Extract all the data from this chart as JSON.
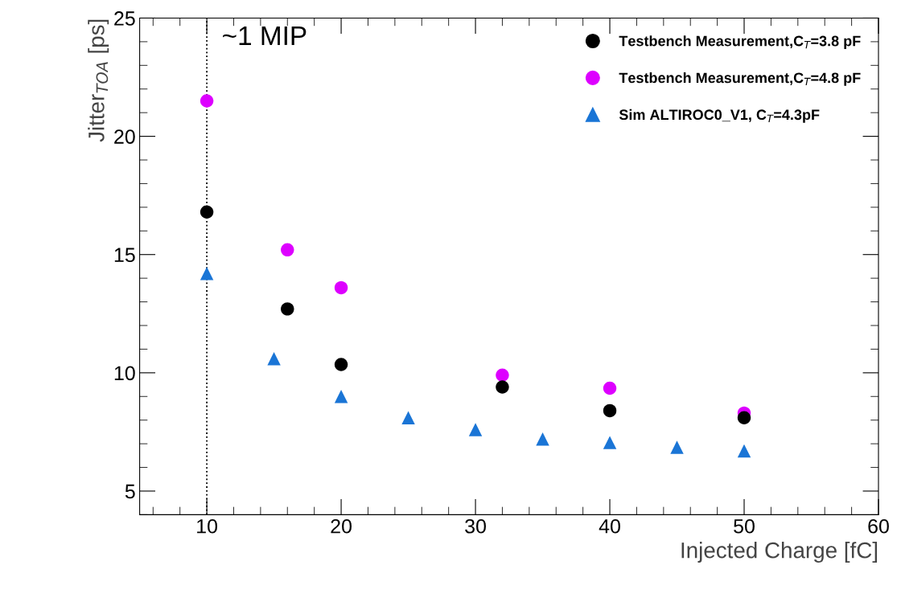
{
  "chart_data": {
    "type": "scatter",
    "xlabel": "Injected Charge [fC]",
    "ylabel": "Jitter$_{TOA}$ [ps]",
    "xlim": [
      5,
      60
    ],
    "xticks": [
      10,
      20,
      30,
      40,
      50,
      60
    ],
    "ylim": [
      4,
      25
    ],
    "yticks": [
      5,
      10,
      15,
      20,
      25
    ],
    "grid": false,
    "legend": "top right",
    "series": [
      {
        "name": "Testbench Measurement,C$_{T}$=3.8 pF",
        "color": "#000000",
        "marker": "circle",
        "x": [
          10,
          16,
          20,
          32,
          40,
          50
        ],
        "values": [
          16.8,
          12.7,
          10.35,
          9.4,
          8.4,
          8.1
        ]
      },
      {
        "name": "Testbench Measurement,C$_{T}$=4.8 pF",
        "color": "#dd00ff",
        "marker": "circle",
        "x": [
          10,
          16,
          20,
          32,
          40,
          50
        ],
        "values": [
          21.5,
          15.2,
          13.6,
          9.9,
          9.35,
          8.3
        ]
      },
      {
        "name": "Sim ALTIROC0_V1, C$_{T}$=4.3pF",
        "color": "#1a75d6",
        "marker": "triangle",
        "x": [
          10,
          15,
          20,
          25,
          30,
          35,
          40,
          45,
          50
        ],
        "values": [
          14.2,
          10.6,
          9.0,
          8.1,
          7.6,
          7.2,
          7.05,
          6.85,
          6.7
        ]
      }
    ],
    "ref_lines": [
      {
        "axis": "x",
        "value": 10,
        "label": "~1 MIP",
        "line_style": "dotted",
        "color": "#000000"
      }
    ]
  }
}
